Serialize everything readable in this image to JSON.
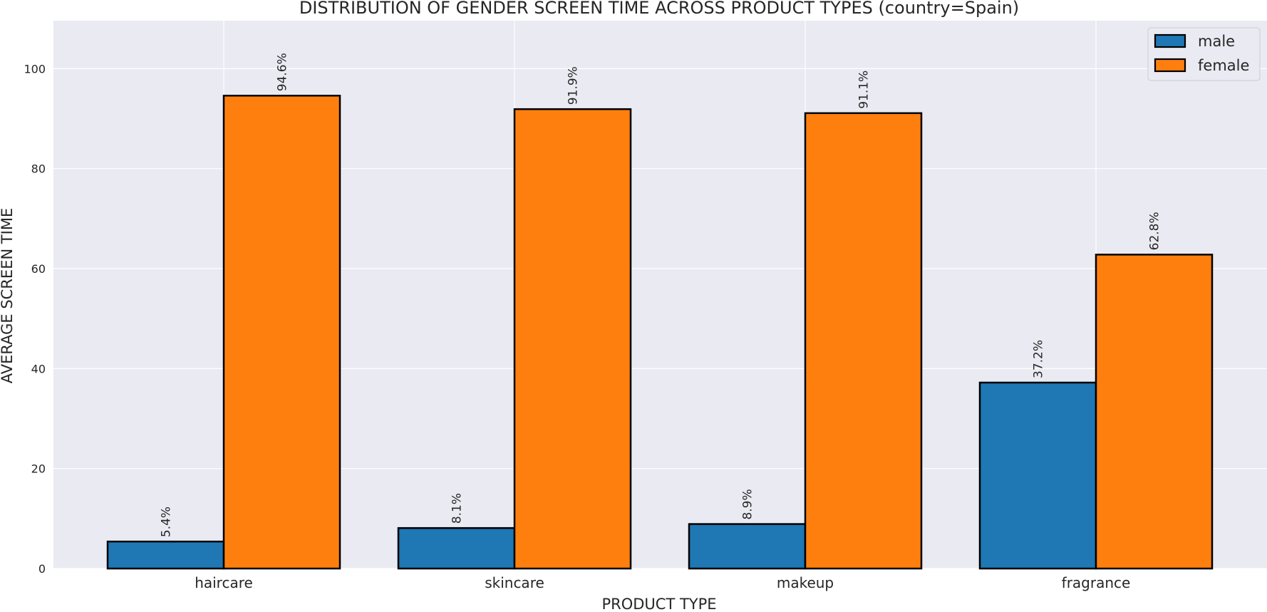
{
  "chart_data": {
    "type": "bar",
    "title": "DISTRIBUTION OF GENDER SCREEN TIME ACROSS PRODUCT TYPES (country=Spain)",
    "xlabel": "PRODUCT TYPE",
    "ylabel": "AVERAGE SCREEN TIME",
    "categories": [
      "haircare",
      "skincare",
      "makeup",
      "fragrance"
    ],
    "series": [
      {
        "name": "male",
        "values": [
          5.4,
          8.1,
          8.9,
          37.2
        ],
        "labels": [
          "5.4%",
          "8.1%",
          "8.9%",
          "37.2%"
        ],
        "color": "#1f77b4"
      },
      {
        "name": "female",
        "values": [
          94.6,
          91.9,
          91.1,
          62.8
        ],
        "labels": [
          "94.6%",
          "91.9%",
          "91.1%",
          "62.8%"
        ],
        "color": "#ff7f0e"
      }
    ],
    "ylim": [
      0,
      109.6
    ],
    "yticks": [
      0,
      20,
      40,
      60,
      80,
      100
    ],
    "grid": true,
    "legend_position": "top-right",
    "background_color": "#eaeaf2",
    "grid_color": "#ffffff",
    "bar_edge_color": "#000000"
  }
}
